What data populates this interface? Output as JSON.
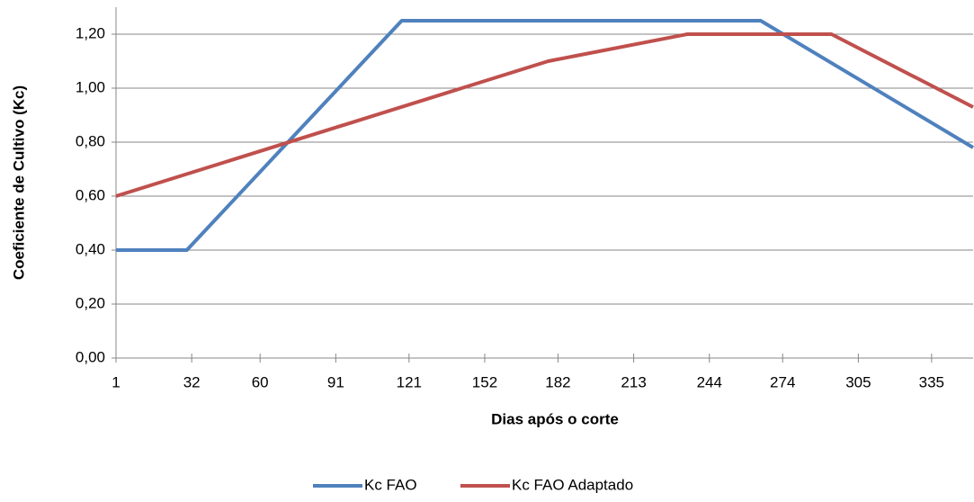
{
  "chart_data": {
    "type": "line",
    "xlabel": "Dias após o corte",
    "ylabel": "Coeficiente de Cultivo (Kc)",
    "xlim": [
      1,
      352
    ],
    "xticks": [
      1,
      32,
      60,
      91,
      121,
      152,
      182,
      213,
      244,
      274,
      305,
      335
    ],
    "ylim": [
      0,
      1.3
    ],
    "yticks": [
      {
        "value": 0,
        "label": "0,00"
      },
      {
        "value": 0.2,
        "label": "0,20"
      },
      {
        "value": 0.4,
        "label": "0,40"
      },
      {
        "value": 0.6,
        "label": "0,60"
      },
      {
        "value": 0.8,
        "label": "0,80"
      },
      {
        "value": 1.0,
        "label": "1,00"
      },
      {
        "value": 1.2,
        "label": "1,20"
      }
    ],
    "grid": true,
    "legend": "bottom",
    "series": [
      {
        "name": "Kc FAO",
        "color": "#4f81bd",
        "x": [
          1,
          30,
          118,
          265,
          352
        ],
        "values": [
          0.4,
          0.4,
          1.25,
          1.25,
          0.78
        ]
      },
      {
        "name": "Kc FAO Adaptado",
        "color": "#c0504d",
        "x": [
          1,
          178,
          235,
          294,
          352
        ],
        "values": [
          0.6,
          1.1,
          1.2,
          1.2,
          0.93
        ]
      }
    ]
  }
}
